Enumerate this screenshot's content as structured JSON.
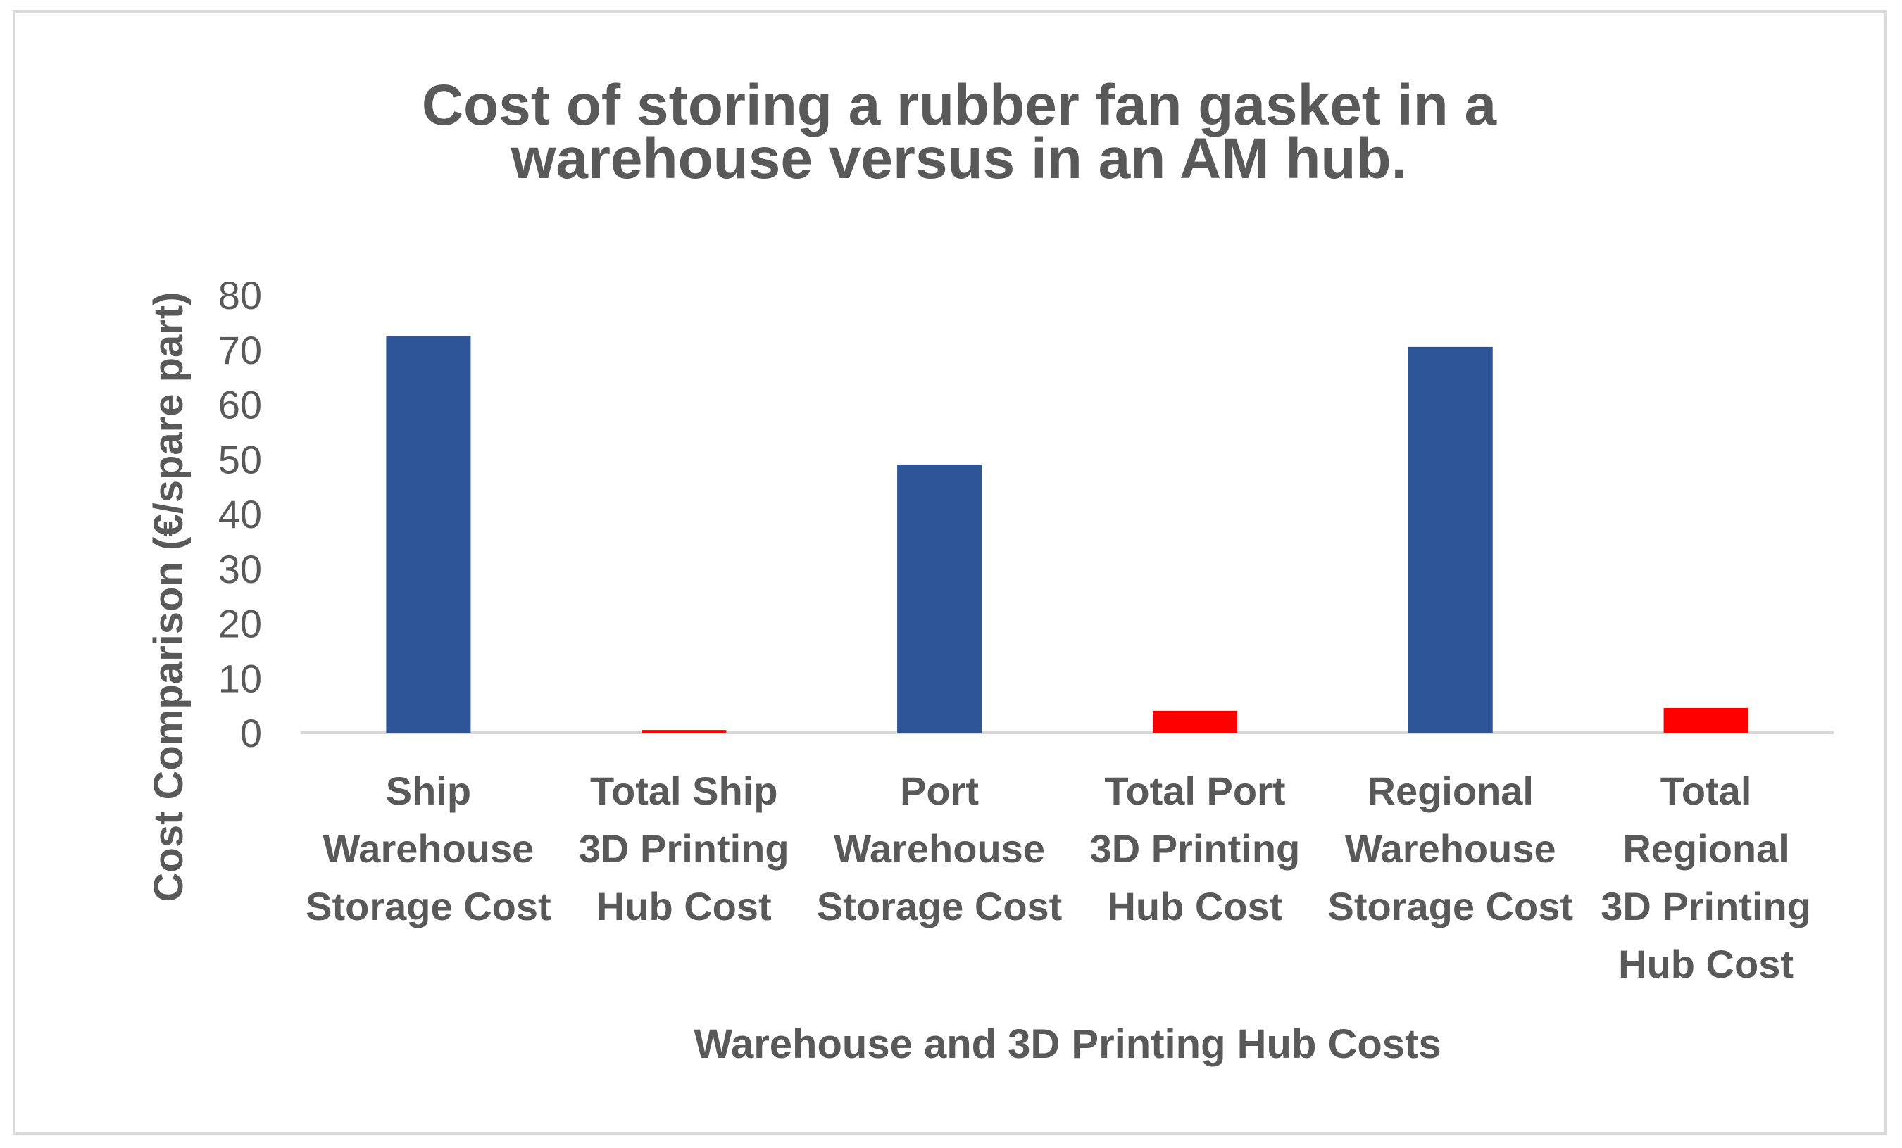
{
  "chart_data": {
    "type": "bar",
    "title_lines": [
      "Cost of storing a rubber fan gasket in a",
      "warehouse versus in an AM hub."
    ],
    "categories": [
      [
        "Ship",
        "Warehouse",
        "Storage Cost"
      ],
      [
        "Total Ship",
        "3D Printing",
        "Hub Cost"
      ],
      [
        "Port",
        "Warehouse",
        "Storage Cost"
      ],
      [
        "Total Port",
        "3D Printing",
        "Hub Cost"
      ],
      [
        "Regional",
        "Warehouse",
        "Storage Cost"
      ],
      [
        "Total",
        "Regional",
        "3D Printing",
        "Hub Cost"
      ]
    ],
    "values": [
      72.5,
      0.5,
      49,
      4,
      70.5,
      4.5
    ],
    "bar_colors": [
      "#2e5597",
      "#ff0000",
      "#2e5597",
      "#ff0000",
      "#2e5597",
      "#ff0000"
    ],
    "xlabel": "Warehouse and 3D Printing Hub Costs",
    "ylabel": "Cost  Comparison  (€/spare part)",
    "ylim": [
      0,
      80
    ],
    "yticks": [
      0,
      10,
      20,
      30,
      40,
      50,
      60,
      70,
      80
    ],
    "grid": false,
    "legend": "none"
  }
}
